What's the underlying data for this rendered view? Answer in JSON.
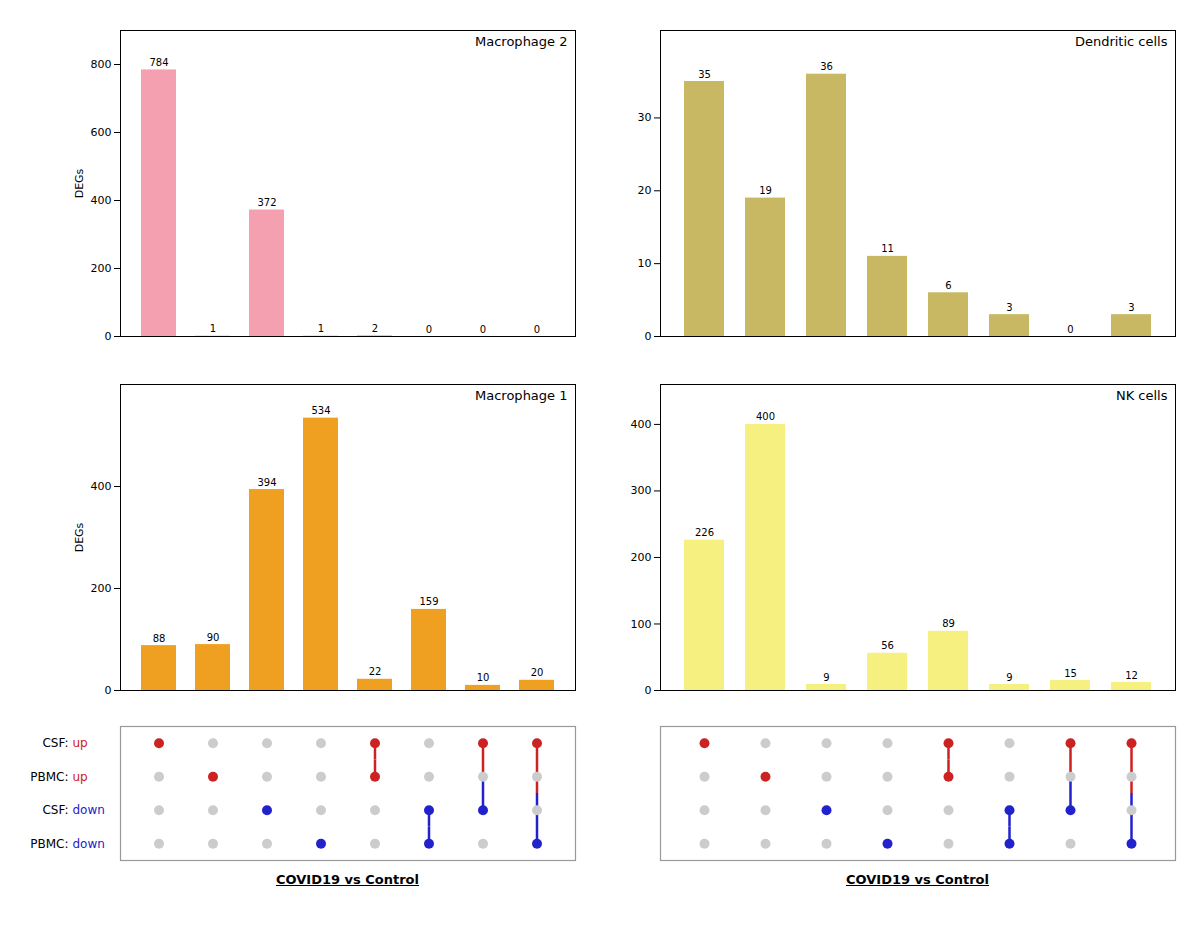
{
  "chart_data": [
    {
      "type": "bar",
      "title": "Macrophage 2",
      "categories": [
        null,
        null,
        null,
        null,
        null,
        null,
        null,
        null
      ],
      "values": [
        784,
        1,
        372,
        1,
        2,
        0,
        0,
        0
      ],
      "color": "#f4a0b0",
      "ylim": [
        0,
        900
      ],
      "yticks": [
        0,
        200,
        400,
        600,
        800
      ],
      "ylabel": "DEGs",
      "data_labels": true
    },
    {
      "type": "bar",
      "title": "Dendritic cells",
      "categories": [
        null,
        null,
        null,
        null,
        null,
        null,
        null,
        null
      ],
      "values": [
        35,
        19,
        36,
        11,
        6,
        3,
        0,
        3
      ],
      "color": "#c8b864",
      "ylim": [
        0,
        42
      ],
      "yticks": [
        0,
        10,
        20,
        30
      ],
      "data_labels": true
    },
    {
      "type": "bar",
      "title": "Macrophage 1",
      "categories": [
        null,
        null,
        null,
        null,
        null,
        null,
        null,
        null
      ],
      "values": [
        88,
        90,
        394,
        534,
        22,
        159,
        10,
        20
      ],
      "color": "#f0a020",
      "ylim": [
        0,
        600
      ],
      "yticks": [
        0,
        200,
        400
      ],
      "ylabel": "DEGs",
      "data_labels": true
    },
    {
      "type": "bar",
      "title": "NK cells",
      "categories": [
        null,
        null,
        null,
        null,
        null,
        null,
        null,
        null
      ],
      "values": [
        226,
        400,
        9,
        56,
        89,
        9,
        15,
        12
      ],
      "color": "#f5f080",
      "ylim": [
        0,
        460
      ],
      "yticks": [
        0,
        100,
        200,
        300,
        400
      ],
      "data_labels": true
    },
    {
      "type": "dot_matrix",
      "xlabel": "COVID19 vs Control",
      "rows": [
        {
          "prefix": "CSF:",
          "label": "up",
          "color": "#cc2222"
        },
        {
          "prefix": "PBMC:",
          "label": "up",
          "color": "#cc2222"
        },
        {
          "prefix": "CSF:",
          "label": "down",
          "color": "#2222cc"
        },
        {
          "prefix": "PBMC:",
          "label": "down",
          "color": "#2222cc"
        }
      ],
      "active": [
        [
          true,
          false,
          false,
          false
        ],
        [
          false,
          true,
          false,
          false
        ],
        [
          false,
          false,
          true,
          false
        ],
        [
          false,
          false,
          false,
          true
        ],
        [
          true,
          true,
          false,
          false
        ],
        [
          false,
          false,
          true,
          true
        ],
        [
          true,
          false,
          true,
          false
        ],
        [
          true,
          false,
          false,
          true
        ]
      ],
      "connections": [
        [],
        [],
        [],
        [],
        [
          0,
          1
        ],
        [
          2,
          3
        ],
        [
          0,
          2
        ],
        [
          0,
          3
        ]
      ],
      "inactive_color": "#cccccc"
    },
    {
      "type": "dot_matrix",
      "xlabel": "COVID19 vs Control",
      "rows": [
        {
          "color": "#cc2222"
        },
        {
          "color": "#cc2222"
        },
        {
          "color": "#2222cc"
        },
        {
          "color": "#2222cc"
        }
      ],
      "active": [
        [
          true,
          false,
          false,
          false
        ],
        [
          false,
          true,
          false,
          false
        ],
        [
          false,
          false,
          true,
          false
        ],
        [
          false,
          false,
          false,
          true
        ],
        [
          true,
          true,
          false,
          false
        ],
        [
          false,
          false,
          true,
          true
        ],
        [
          true,
          false,
          true,
          false
        ],
        [
          true,
          false,
          false,
          true
        ]
      ],
      "connections": [
        [],
        [],
        [],
        [],
        [
          0,
          1
        ],
        [
          2,
          3
        ],
        [
          0,
          2
        ],
        [
          0,
          3
        ]
      ],
      "inactive_color": "#cccccc"
    }
  ]
}
